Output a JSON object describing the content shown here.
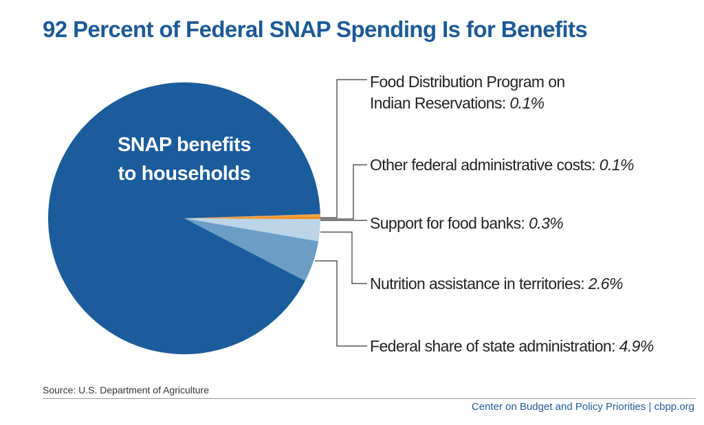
{
  "title": "92 Percent of Federal SNAP Spending Is for Benefits",
  "source": "Source: U.S. Department of Agriculture",
  "footer": "Center on Budget and Policy Priorities | cbpp.org",
  "chart_data": {
    "type": "pie",
    "title": "92 Percent of Federal SNAP Spending Is for Benefits",
    "inside_label": [
      "SNAP benefits",
      "to households"
    ],
    "slices": [
      {
        "label": "SNAP benefits to households",
        "value": 92.0,
        "display": "",
        "color": "#1b5c9c"
      },
      {
        "label": "Food Distribution Program on Indian Reservations:",
        "label_lines": [
          "Food Distribution Program on",
          "Indian Reservations:"
        ],
        "value": 0.1,
        "display": "0.1%",
        "color": "#f0a04a"
      },
      {
        "label": "Other federal administrative costs:",
        "value": 0.1,
        "display": "0.1%",
        "color": "#f39a2e"
      },
      {
        "label": "Support for food banks:",
        "value": 0.3,
        "display": "0.3%",
        "color": "#ec8e24"
      },
      {
        "label": "Nutrition assistance in territories:",
        "value": 2.6,
        "display": "2.6%",
        "color": "#bcd4e8"
      },
      {
        "label": "Federal share of state administration:",
        "value": 4.9,
        "display": "4.9%",
        "color": "#6b9dc6"
      }
    ]
  }
}
